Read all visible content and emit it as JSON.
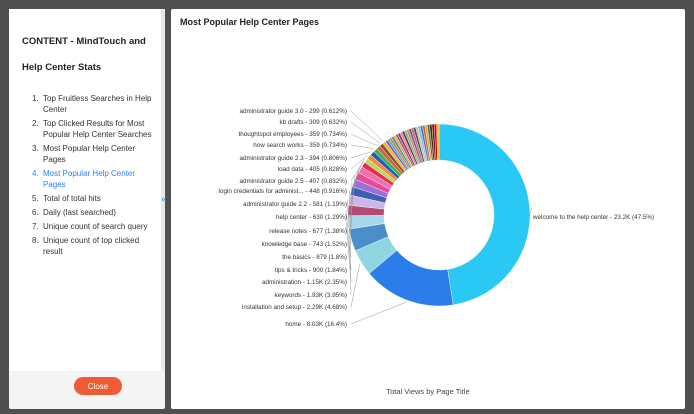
{
  "sidebar": {
    "title": "CONTENT - MindTouch and Help Center Stats",
    "items": [
      {
        "num": "1.",
        "label": "Top Fruitless Searches in Help Center"
      },
      {
        "num": "2.",
        "label": "Top Clicked Results for Most Popular Help Center Searches"
      },
      {
        "num": "3.",
        "label": "Most Popular Help Center Pages"
      },
      {
        "num": "4.",
        "label": "Most Popular Help Center Pages",
        "active": true
      },
      {
        "num": "5.",
        "label": "Total of total hits"
      },
      {
        "num": "6.",
        "label": "Daily (last searched)"
      },
      {
        "num": "7.",
        "label": "Unique count of search query"
      },
      {
        "num": "8.",
        "label": "Unique count of top clicked result"
      }
    ],
    "close_label": "Close",
    "toggle_icon": "«"
  },
  "main": {
    "title": "Most Popular Help Center Pages"
  },
  "colors": {
    "accent": "#2d7ff9",
    "close_button": "#ef5b35"
  },
  "chart_data": {
    "type": "pie",
    "title": "Most Popular Help Center Pages",
    "xlabel": "Total Views by Page Title",
    "donut": true,
    "legend": "none",
    "labels": [
      "welcome to the help center - 23.2K (47.5%)",
      "home - 8.03K (16.4%)",
      "installation and setup - 2.29K (4.68%)",
      "keywords - 1.93K (3.95%)",
      "administration - 1.15K (2.35%)",
      "tips & tricks - 900 (1.84%)",
      "the basics - 879 (1.8%)",
      "knowledge base - 743 (1.52%)",
      "release notes - 677 (1.38%)",
      "help center - 630 (1.29%)",
      "administrator guide 2.2 - 581 (1.19%)",
      "login credentials for administ... - 448 (0.916%)",
      "administrator guide 2.5 - 407 (0.832%)",
      "load data - 405 (0.828%)",
      "administrator guide 2.3 - 394 (0.806%)",
      "how search works - 359 (0.734%)",
      "thoughtspot employees - 359 (0.734%)",
      "kb drafts - 309 (0.632%)",
      "administrator guide 3.0 - 299 (0.612%)"
    ],
    "values": [
      23200,
      8030,
      2290,
      1930,
      1150,
      900,
      879,
      743,
      677,
      630,
      581,
      448,
      407,
      405,
      394,
      359,
      359,
      309,
      299
    ],
    "percents": [
      47.5,
      16.4,
      4.68,
      3.95,
      2.35,
      1.84,
      1.8,
      1.52,
      1.38,
      1.29,
      1.19,
      0.916,
      0.832,
      0.828,
      0.806,
      0.734,
      0.734,
      0.632,
      0.612
    ],
    "colors": [
      "#29c8f5",
      "#2b7de9",
      "#8fd6e1",
      "#4a8fc9",
      "#a8d7ea",
      "#b54a72",
      "#c9b7e8",
      "#3e5fb3",
      "#9b6fd6",
      "#e84a9a",
      "#f06fae",
      "#e2304b",
      "#b9d86a",
      "#f08d3b",
      "#1f5fb5",
      "#40b24f",
      "#c86a3e",
      "#8b4f2f",
      "#f3b53f"
    ],
    "other_colors": [
      "#6a5acd",
      "#4fb3a5",
      "#e76f51",
      "#2a9d8f",
      "#f4a261",
      "#9c6644",
      "#7b2cbf",
      "#ff7f50",
      "#3d405b",
      "#81b29a",
      "#e07a5f",
      "#6d597a",
      "#b56576",
      "#355070",
      "#eaac8b",
      "#56cfe1",
      "#5e60ce",
      "#bc6c25",
      "#dda15e",
      "#606c38",
      "#283618",
      "#9d0208",
      "#d00000",
      "#ffba08"
    ]
  }
}
